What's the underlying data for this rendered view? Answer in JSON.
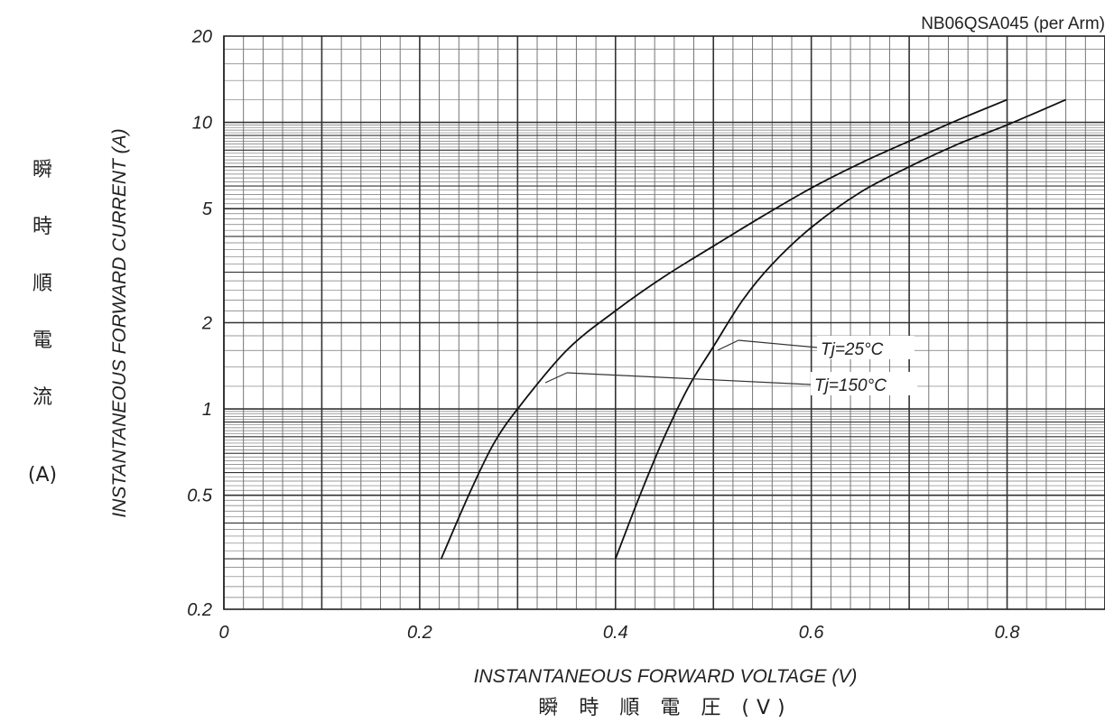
{
  "chart_data": {
    "type": "line",
    "title": "",
    "subtitle": "NB06QSA045 (per Arm)",
    "xlabel": "INSTANTANEOUS FORWARD VOLTAGE (V)",
    "xlabel_jp": "瞬 時 順 電 圧 (V)",
    "ylabel": "INSTANTANEOUS FORWARD CURRENT (A)",
    "ylabel_jp": [
      "瞬",
      "時",
      "順",
      "電",
      "流",
      "(A)"
    ],
    "xlim": [
      0,
      0.9
    ],
    "ylim": [
      0.2,
      20
    ],
    "yscale": "log",
    "grid": true,
    "x_ticks": [
      "0",
      "0.2",
      "0.4",
      "0.6",
      "0.8"
    ],
    "y_ticks": [
      "20",
      "10",
      "5",
      "2",
      "1",
      "0.5",
      "0.2"
    ],
    "series": [
      {
        "name": "Tj=150°C",
        "x": [
          0.222,
          0.25,
          0.275,
          0.3,
          0.35,
          0.4,
          0.45,
          0.5,
          0.55,
          0.6,
          0.65,
          0.7,
          0.75,
          0.8
        ],
        "y": [
          0.3,
          0.5,
          0.75,
          1.0,
          1.6,
          2.2,
          2.9,
          3.7,
          4.7,
          5.9,
          7.2,
          8.6,
          10.2,
          12.0
        ]
      },
      {
        "name": "Tj=25°C",
        "x": [
          0.4,
          0.425,
          0.45,
          0.475,
          0.5,
          0.53,
          0.56,
          0.6,
          0.65,
          0.7,
          0.75,
          0.8,
          0.86
        ],
        "y": [
          0.3,
          0.5,
          0.8,
          1.2,
          1.65,
          2.4,
          3.2,
          4.3,
          5.7,
          7.0,
          8.4,
          9.8,
          12.0
        ]
      }
    ],
    "annotations": [
      "Tj=25°C",
      "Tj=150°C"
    ]
  }
}
